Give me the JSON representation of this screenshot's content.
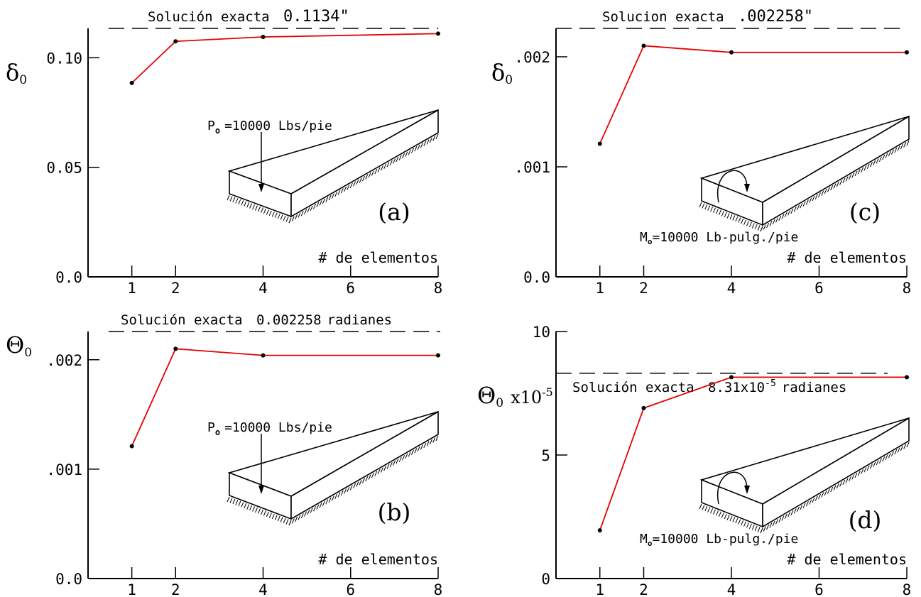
{
  "chart_data": [
    {
      "type": "line",
      "panel_label": "(a)",
      "x": [
        1,
        2,
        4,
        8
      ],
      "series": [
        {
          "values": [
            0.0885,
            0.1075,
            0.1095,
            0.111
          ]
        }
      ],
      "ylabel": "δ",
      "ylabel_sub": "0",
      "xlabel": "# de elementos",
      "exact_label": "Solución exacta",
      "exact_value_text": "0.1134\"",
      "exact_value": 0.1134,
      "ylim": [
        0.0,
        0.1134
      ],
      "xlim": [
        0,
        8
      ],
      "yticks": [
        0.0,
        0.05,
        0.1
      ],
      "ytick_labels": [
        "0.0",
        "0.05",
        "0.10"
      ],
      "xticks": [
        1,
        2,
        4,
        6,
        8
      ],
      "xtick_labels": [
        "1",
        "2",
        "4",
        "6",
        "8"
      ],
      "load_label": "P",
      "load_sub": "o",
      "load_value": "=10000 Lbs/pie",
      "load_type": "force",
      "line_color": "#e60000"
    },
    {
      "type": "line",
      "panel_label": "(b)",
      "x": [
        1,
        2,
        4,
        8
      ],
      "series": [
        {
          "values": [
            0.00121,
            0.0021,
            0.00204,
            0.00204
          ]
        }
      ],
      "ylabel": "Θ",
      "ylabel_sub": "0",
      "xlabel": "# de elementos",
      "exact_label": "Solución exacta",
      "exact_value_text": "0.002258",
      "exact_unit": "radianes",
      "exact_value": 0.002258,
      "ylim": [
        0.0,
        0.002258
      ],
      "xlim": [
        0,
        8
      ],
      "yticks": [
        0.0,
        0.001,
        0.002
      ],
      "ytick_labels": [
        "0.0",
        ".001",
        ".002"
      ],
      "xticks": [
        1,
        2,
        4,
        6,
        8
      ],
      "xtick_labels": [
        "1",
        "2",
        "4",
        "6",
        "8"
      ],
      "load_label": "P",
      "load_sub": "o",
      "load_value": "=10000 Lbs/pie",
      "load_type": "force",
      "line_color": "#e60000"
    },
    {
      "type": "line",
      "panel_label": "(c)",
      "x": [
        1,
        2,
        4,
        8
      ],
      "series": [
        {
          "values": [
            0.00121,
            0.0021,
            0.00204,
            0.00204
          ]
        }
      ],
      "ylabel": "δ",
      "ylabel_sub": "0",
      "xlabel": "# de elementos",
      "exact_label": "Solucion exacta",
      "exact_value_text": ".002258\"",
      "exact_value": 0.002258,
      "ylim": [
        0.0,
        0.002258
      ],
      "xlim": [
        0,
        8
      ],
      "yticks": [
        0.0,
        0.001,
        0.002
      ],
      "ytick_labels": [
        "0.0",
        ".001",
        ".002"
      ],
      "xticks": [
        1,
        2,
        4,
        6,
        8
      ],
      "xtick_labels": [
        "1",
        "2",
        "4",
        "6",
        "8"
      ],
      "load_label": "M",
      "load_sub": "o",
      "load_value": "=10000 Lb-pulg./pie",
      "load_type": "moment",
      "line_color": "#e60000"
    },
    {
      "type": "line",
      "panel_label": "(d)",
      "x": [
        1,
        2,
        4,
        8
      ],
      "series": [
        {
          "values": [
            1.95,
            6.9,
            8.15,
            8.15
          ]
        }
      ],
      "ylabel": "Θ",
      "ylabel_sub": "0",
      "ylabel_suffix": "x10",
      "ylabel_exp": "-5",
      "xlabel": "# de elementos",
      "exact_label": "Solución exacta",
      "exact_value_text": "8.31x10",
      "exact_value_exp": "-5",
      "exact_unit": "radianes",
      "exact_value": 8.31,
      "ylim": [
        0,
        10
      ],
      "xlim": [
        0,
        8
      ],
      "yticks": [
        0,
        5,
        10
      ],
      "ytick_labels": [
        "0",
        "5",
        "10"
      ],
      "xticks": [
        1,
        2,
        4,
        6,
        8
      ],
      "xtick_labels": [
        "1",
        "2",
        "4",
        "6",
        "8"
      ],
      "load_label": "M",
      "load_sub": "o",
      "load_value": "=10000 Lb-pulg./pie",
      "load_type": "moment",
      "line_color": "#e60000"
    }
  ]
}
